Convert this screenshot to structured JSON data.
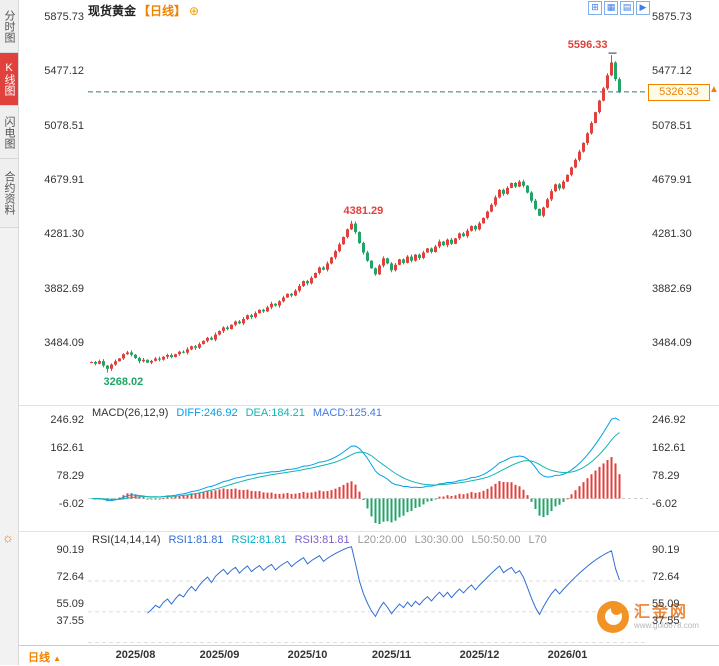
{
  "sidebar": {
    "tabs": [
      {
        "label": "分时图"
      },
      {
        "label": "K线图"
      },
      {
        "label": "闪电图"
      },
      {
        "label": "合约资料"
      }
    ],
    "active_index": 1,
    "settings_icon": "☼"
  },
  "header": {
    "title": "现货黄金",
    "period": "【日线】",
    "plus_icon": "⊕"
  },
  "toolbar": {
    "icons": [
      {
        "name": "split-view",
        "glyph": "⊞"
      },
      {
        "name": "grid-view",
        "glyph": "▦"
      },
      {
        "name": "list-view",
        "glyph": "▤"
      },
      {
        "name": "collapse-panel",
        "glyph": "▶"
      }
    ]
  },
  "price_scale": {
    "labels": [
      "5875.73",
      "5477.12",
      "5078.51",
      "4679.91",
      "4281.30",
      "3882.69",
      "3484.09"
    ]
  },
  "main_chart": {
    "current_price": "5326.33",
    "up_arrow": "▲",
    "annotations": [
      {
        "text": "5596.33",
        "value": 5596.33,
        "index": 130,
        "type": "high",
        "color": "#e1413c"
      },
      {
        "text": "4381.29",
        "value": 4381.29,
        "index": 65,
        "type": "high",
        "color": "#e1413c"
      },
      {
        "text": "3268.02",
        "value": 3268.02,
        "index": 4,
        "type": "low",
        "color": "#21a567"
      }
    ]
  },
  "macd_panel": {
    "label": "MACD(26,12,9)",
    "diff_label": "DIFF:246.92",
    "dea_label": "DEA:184.21",
    "macd_label": "MACD:125.41",
    "axis_labels": [
      "246.92",
      "162.61",
      "78.29",
      "-6.02"
    ]
  },
  "rsi_panel": {
    "label": "RSI(14,14,14)",
    "rsi1_label": "RSI1:81.81",
    "rsi2_label": "RSI2:81.81",
    "rsi3_label": "RSI3:81.81",
    "l20_label": "L20:20.00",
    "l30_label": "L30:30.00",
    "l50_label": "L50:50.00",
    "l70_label": "L70",
    "axis_labels": [
      "90.19",
      "72.64",
      "55.09",
      "37.55"
    ]
  },
  "bottom_bar": {
    "period": "日线",
    "arrow": "▲",
    "dates": [
      "2025/08",
      "2025/09",
      "2025/10",
      "2025/11",
      "2025/12",
      "2026/01"
    ]
  },
  "logo": {
    "name": "汇金网",
    "url": "www.gold678.com"
  },
  "colors": {
    "up": "#e1413c",
    "down": "#21a567",
    "accent": "#f08200",
    "diff_line": "#00a0e9",
    "dea_line": "#15b5b0",
    "rsi_line": "#2f6fd6",
    "price_line": "#2e7d7d",
    "active_tab": "#e1413c"
  },
  "chart_data": {
    "type": "candlestick",
    "title": "现货黄金 日线",
    "x_labels": [
      "2025/08",
      "2025/09",
      "2025/10",
      "2025/11",
      "2025/12",
      "2026/01"
    ],
    "month_start_indices": [
      11,
      32,
      54,
      75,
      97,
      119
    ],
    "y_axis_values": [
      5875.73,
      5477.12,
      5078.51,
      4679.91,
      4281.3,
      3882.69,
      3484.09
    ],
    "key_points": {
      "period_low": 3268.02,
      "october_peak": 4381.29,
      "period_high": 5596.33,
      "last_price": 5326.33
    },
    "closes": [
      3345,
      3332,
      3351,
      3318,
      3295,
      3326,
      3350,
      3371,
      3402,
      3415,
      3398,
      3374,
      3350,
      3361,
      3340,
      3353,
      3370,
      3362,
      3383,
      3396,
      3381,
      3402,
      3420,
      3413,
      3438,
      3460,
      3449,
      3476,
      3500,
      3522,
      3509,
      3546,
      3572,
      3598,
      3586,
      3618,
      3642,
      3628,
      3660,
      3688,
      3674,
      3703,
      3728,
      3716,
      3746,
      3772,
      3758,
      3790,
      3818,
      3845,
      3832,
      3868,
      3902,
      3938,
      3922,
      3962,
      3998,
      4038,
      4022,
      4068,
      4112,
      4158,
      4208,
      4262,
      4318,
      4360,
      4298,
      4218,
      4148,
      4088,
      4032,
      3988,
      4052,
      4105,
      4068,
      4018,
      4058,
      4098,
      4072,
      4118,
      4088,
      4132,
      4108,
      4148,
      4178,
      4152,
      4192,
      4228,
      4202,
      4242,
      4212,
      4252,
      4288,
      4268,
      4308,
      4342,
      4318,
      4362,
      4402,
      4448,
      4498,
      4552,
      4608,
      4578,
      4622,
      4658,
      4632,
      4668,
      4638,
      4588,
      4528,
      4468,
      4418,
      4478,
      4538,
      4598,
      4648,
      4618,
      4668,
      4718,
      4772,
      4828,
      4888,
      4952,
      5022,
      5098,
      5178,
      5262,
      5352,
      5448,
      5542,
      5420,
      5326.33
    ],
    "indicators": {
      "macd": {
        "params": [
          26,
          12,
          9
        ],
        "diff": 246.92,
        "dea": 184.21,
        "macd": 125.41,
        "axis": [
          246.92,
          162.61,
          78.29,
          -6.02
        ]
      },
      "rsi": {
        "params": [
          14,
          14,
          14
        ],
        "rsi1": 81.81,
        "rsi2": 81.81,
        "rsi3": 81.81,
        "levels": [
          20,
          30,
          50,
          70
        ],
        "axis": [
          90.19,
          72.64,
          55.09,
          37.55
        ]
      }
    }
  }
}
